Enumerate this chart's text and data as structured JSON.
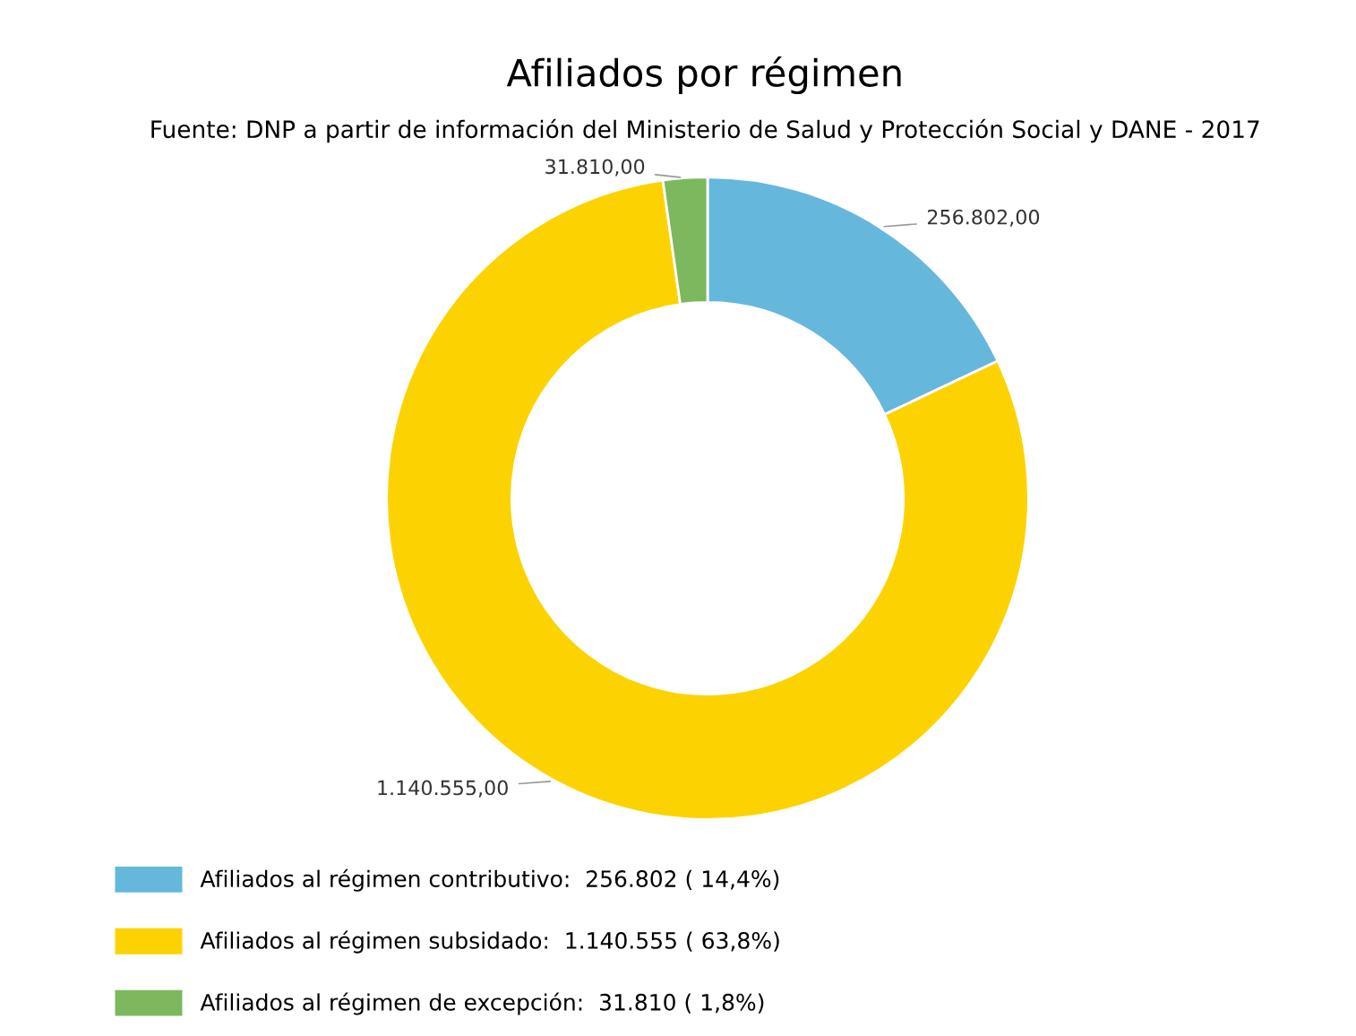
{
  "chart_data": {
    "type": "donut",
    "title": "Afiliados por régimen",
    "subtitle": "Fuente: DNP a partir de información del Ministerio de Salud y Protección Social y DANE - 2017",
    "categories": [
      "Afiliados al régimen contributivo:  256.802 ( 14,4%)",
      "Afiliados al régimen subsidado:  1.140.555 ( 63,8%)",
      "Afiliados al régimen de excepción:  31.810 ( 1,8%)"
    ],
    "values": [
      256802,
      1140555,
      31810
    ],
    "colors": [
      "#66b7dc",
      "#fcd300",
      "#7cb85e"
    ],
    "value_labels": [
      "256.802,00",
      "1.140.555,00",
      "31.810,00"
    ],
    "legend": "bottom left"
  }
}
